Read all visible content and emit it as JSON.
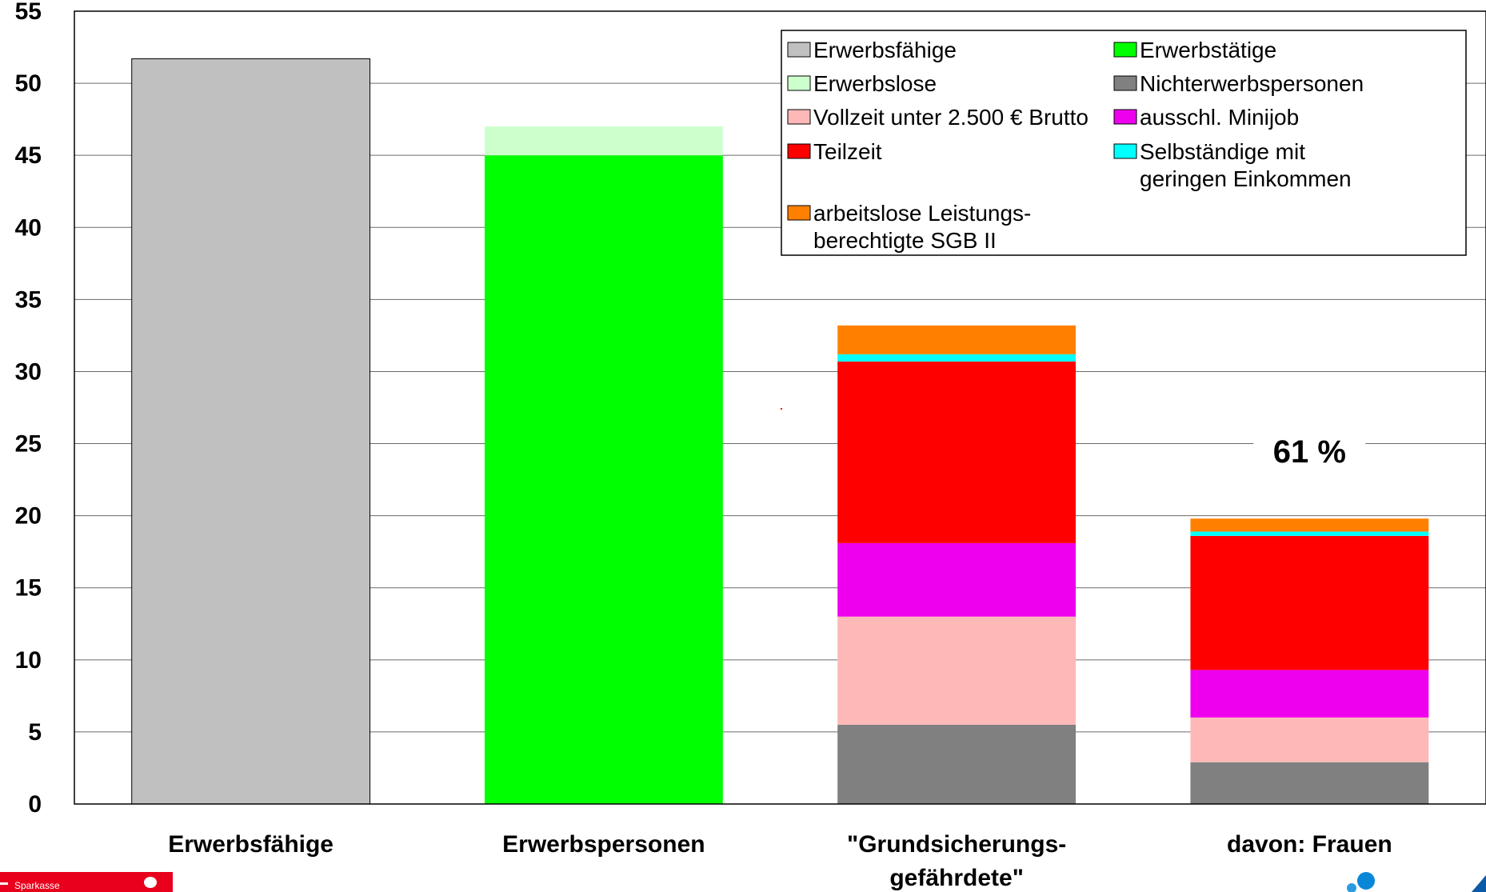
{
  "chart_data": {
    "type": "bar",
    "stacked": true,
    "title": "",
    "xlabel": "",
    "ylabel": "",
    "ylim": [
      0,
      55
    ],
    "yticks": [
      0,
      5,
      10,
      15,
      20,
      25,
      30,
      35,
      40,
      45,
      50,
      55
    ],
    "grid": true,
    "legend_position": "top-right",
    "categories": [
      "Erwerbsfähige",
      "Erwerbspersonen",
      "\"Grundsicherungs-",
      "davon: Frauen"
    ],
    "category_label_lines": [
      [
        "Erwerbsfähige"
      ],
      [
        "Erwerbspersonen"
      ],
      [
        "\"Grundsicherungs-",
        "gefährdete\""
      ],
      [
        "davon: Frauen"
      ]
    ],
    "series": [
      {
        "name": "Erwerbsfähige",
        "color": "#c0c0c0",
        "values": [
          51.7,
          0,
          0,
          0
        ]
      },
      {
        "name": "Erwerbstätige",
        "color": "#00ff00",
        "values": [
          0,
          45.0,
          0,
          0
        ]
      },
      {
        "name": "Erwerbslose",
        "color": "#ccffcc",
        "values": [
          0,
          2.0,
          0,
          0
        ]
      },
      {
        "name": "Nichterwerbspersonen",
        "color": "#808080",
        "values": [
          0,
          0,
          5.5,
          2.9
        ]
      },
      {
        "name": "Vollzeit unter 2.500 € Brutto",
        "color": "#ffb8b8",
        "values": [
          0,
          0,
          7.5,
          3.1
        ]
      },
      {
        "name": "ausschl. Minijob",
        "color": "#ee00ee",
        "values": [
          0,
          0,
          5.1,
          3.3
        ]
      },
      {
        "name": "Teilzeit",
        "color": "#ff0000",
        "values": [
          0,
          0,
          12.6,
          9.3
        ]
      },
      {
        "name": "Selbständige mit geringen Einkommen",
        "color": "#00ffff",
        "values": [
          0,
          0,
          0.5,
          0.3
        ]
      },
      {
        "name": "arbeitslose Leistungsberechtigte SGB II",
        "color": "#ff8000",
        "values": [
          0,
          0,
          2.0,
          0.9
        ]
      }
    ],
    "legend": [
      {
        "lines": [
          "Erwerbsfähige"
        ],
        "color": "#c0c0c0"
      },
      {
        "lines": [
          "Erwerbstätige"
        ],
        "color": "#00ff00"
      },
      {
        "lines": [
          "Erwerbslose"
        ],
        "color": "#ccffcc"
      },
      {
        "lines": [
          "Nichterwerbspersonen"
        ],
        "color": "#808080"
      },
      {
        "lines": [
          "Vollzeit unter 2.500 € Brutto"
        ],
        "color": "#ffb8b8"
      },
      {
        "lines": [
          "ausschl. Minijob"
        ],
        "color": "#ee00ee"
      },
      {
        "lines": [
          "Teilzeit"
        ],
        "color": "#ff0000"
      },
      {
        "lines": [
          "Selbständige mit",
          "geringen Einkommen"
        ],
        "color": "#00ffff"
      },
      {
        "lines": [
          "arbeitslose Leistungs-",
          "berechtigte SGB II"
        ],
        "color": "#ff8000"
      }
    ],
    "annotations": [
      {
        "text": "61 %",
        "category": "davon: Frauen"
      }
    ]
  },
  "footer": {
    "left_logo_text": "Sparkasse"
  }
}
